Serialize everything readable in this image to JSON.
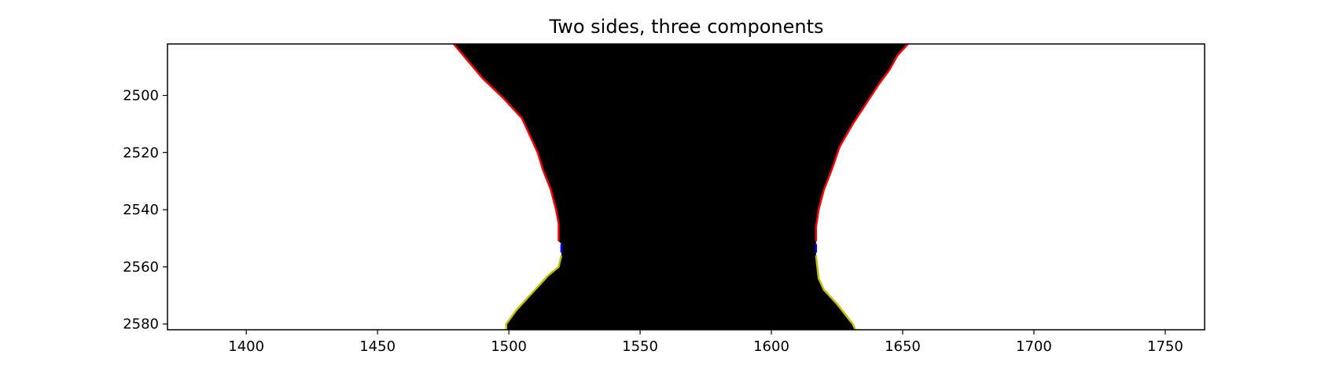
{
  "chart_data": {
    "type": "image",
    "title": "Two sides, three components",
    "xlabel": "",
    "ylabel": "",
    "xlim": [
      1370,
      1765
    ],
    "ylim": [
      2482,
      2582
    ],
    "y_inverted": true,
    "grid": false,
    "xticks": [
      1400,
      1450,
      1500,
      1550,
      1600,
      1650,
      1700,
      1750
    ],
    "yticks": [
      2500,
      2520,
      2540,
      2560,
      2580
    ],
    "colors": {
      "foreground": "#000000",
      "background": "#ffffff",
      "upper_component": "#ff0000",
      "middle_component": "#0000ff",
      "lower_component": "#bfbf00"
    },
    "left_boundary": {
      "red": [
        [
          1479,
          2482
        ],
        [
          1490,
          2494
        ],
        [
          1498,
          2501
        ],
        [
          1505,
          2508
        ],
        [
          1508,
          2514
        ],
        [
          1511,
          2520
        ],
        [
          1513,
          2526
        ],
        [
          1516,
          2533
        ],
        [
          1518,
          2540
        ],
        [
          1519,
          2545
        ],
        [
          1519,
          2551
        ]
      ],
      "blue": [
        [
          1520,
          2552
        ],
        [
          1520,
          2555
        ]
      ],
      "yellow": [
        [
          1520,
          2556
        ],
        [
          1519,
          2560
        ],
        [
          1515,
          2563
        ],
        [
          1512,
          2566
        ],
        [
          1508,
          2570
        ],
        [
          1503,
          2575
        ],
        [
          1499,
          2580
        ],
        [
          1499,
          2582
        ]
      ]
    },
    "right_boundary": {
      "red": [
        [
          1652,
          2482
        ],
        [
          1648,
          2486
        ],
        [
          1645,
          2491
        ],
        [
          1641,
          2496
        ],
        [
          1636,
          2503
        ],
        [
          1631,
          2510
        ],
        [
          1626,
          2518
        ],
        [
          1623,
          2526
        ],
        [
          1620,
          2533
        ],
        [
          1618,
          2540
        ],
        [
          1617,
          2546
        ],
        [
          1617,
          2551
        ]
      ],
      "blue": [
        [
          1617,
          2552
        ],
        [
          1617,
          2555
        ]
      ],
      "yellow": [
        [
          1617,
          2556
        ],
        [
          1618,
          2564
        ],
        [
          1620,
          2568
        ],
        [
          1625,
          2573
        ],
        [
          1631,
          2580
        ],
        [
          1632,
          2582
        ]
      ]
    }
  }
}
